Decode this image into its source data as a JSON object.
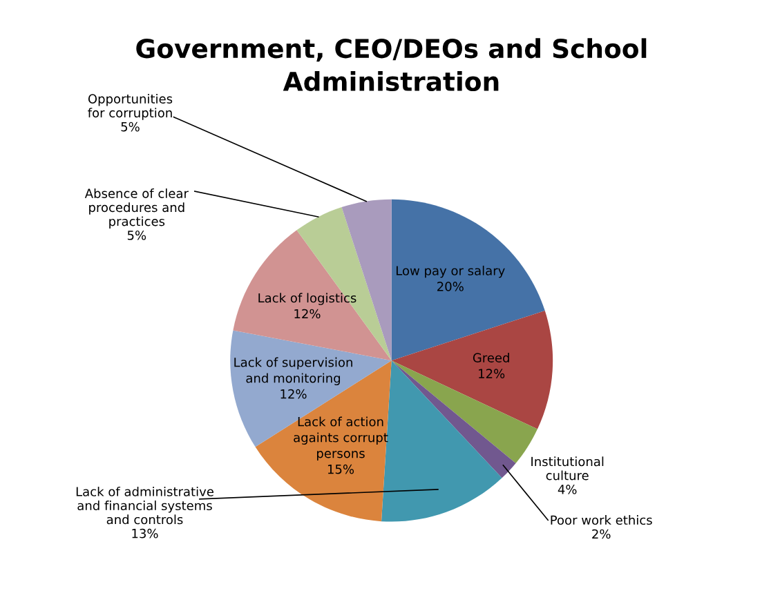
{
  "chart_data": {
    "type": "pie",
    "title": "Government, CEO/DEOs and School Administration",
    "categories": [
      "Low pay or salary",
      "Greed",
      "Institutional culture",
      "Poor work ethics",
      "Lack of administrative and financial systems and controls",
      "Lack of action againts corrupt persons",
      "Lack of supervision and monitoring",
      "Lack of logistics",
      "Absence of clear procedures and practices",
      "Opportunities for corruption"
    ],
    "values": [
      20,
      12,
      4,
      2,
      13,
      15,
      12,
      12,
      5,
      5
    ],
    "value_labels": [
      "20%",
      "12%",
      "4%",
      "2%",
      "13%",
      "15%",
      "12%",
      "12%",
      "5%",
      "5%"
    ],
    "colors": [
      "#4572a7",
      "#aa4643",
      "#89a54e",
      "#71588f",
      "#4198af",
      "#db843d",
      "#93a9cf",
      "#d19392",
      "#b9cd96",
      "#a99bbd"
    ],
    "legend": false
  }
}
